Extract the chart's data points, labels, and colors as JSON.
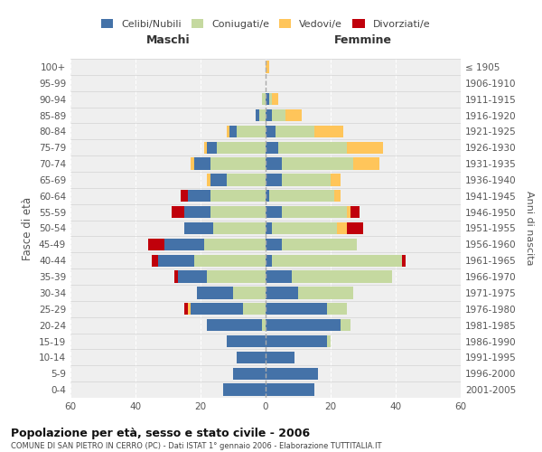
{
  "age_groups": [
    "0-4",
    "5-9",
    "10-14",
    "15-19",
    "20-24",
    "25-29",
    "30-34",
    "35-39",
    "40-44",
    "45-49",
    "50-54",
    "55-59",
    "60-64",
    "65-69",
    "70-74",
    "75-79",
    "80-84",
    "85-89",
    "90-94",
    "95-99",
    "100+"
  ],
  "birth_years": [
    "2001-2005",
    "1996-2000",
    "1991-1995",
    "1986-1990",
    "1981-1985",
    "1976-1980",
    "1971-1975",
    "1966-1970",
    "1961-1965",
    "1956-1960",
    "1951-1955",
    "1946-1950",
    "1941-1945",
    "1936-1940",
    "1931-1935",
    "1926-1930",
    "1921-1925",
    "1916-1920",
    "1911-1915",
    "1906-1910",
    "≤ 1905"
  ],
  "colors": {
    "celibi": "#4472a8",
    "coniugati": "#c5d9a0",
    "vedovi": "#ffc55a",
    "divorziati": "#c0000b"
  },
  "males": {
    "celibi": [
      13,
      10,
      9,
      12,
      17,
      16,
      11,
      9,
      11,
      12,
      9,
      8,
      7,
      5,
      5,
      3,
      2,
      1,
      0,
      0,
      0
    ],
    "coniugati": [
      0,
      0,
      0,
      0,
      1,
      7,
      10,
      18,
      22,
      19,
      16,
      17,
      17,
      12,
      17,
      15,
      9,
      2,
      1,
      0,
      0
    ],
    "vedovi": [
      0,
      0,
      0,
      0,
      0,
      1,
      0,
      0,
      0,
      0,
      0,
      0,
      0,
      1,
      1,
      1,
      1,
      0,
      0,
      0,
      0
    ],
    "divorziati": [
      0,
      0,
      0,
      0,
      0,
      1,
      0,
      1,
      2,
      5,
      0,
      4,
      2,
      0,
      0,
      0,
      0,
      0,
      0,
      0,
      0
    ]
  },
  "females": {
    "celibi": [
      15,
      16,
      9,
      19,
      23,
      19,
      10,
      8,
      2,
      5,
      2,
      5,
      1,
      5,
      5,
      4,
      3,
      2,
      1,
      0,
      0
    ],
    "coniugati": [
      0,
      0,
      0,
      1,
      3,
      6,
      17,
      31,
      40,
      23,
      20,
      20,
      20,
      15,
      22,
      21,
      12,
      4,
      1,
      0,
      0
    ],
    "vedovi": [
      0,
      0,
      0,
      0,
      0,
      0,
      0,
      0,
      0,
      0,
      3,
      1,
      2,
      3,
      8,
      11,
      9,
      5,
      2,
      0,
      1
    ],
    "divorziati": [
      0,
      0,
      0,
      0,
      0,
      0,
      0,
      0,
      1,
      0,
      5,
      3,
      0,
      0,
      0,
      0,
      0,
      0,
      0,
      0,
      0
    ]
  },
  "xlim": 60,
  "title": "Popolazione per età, sesso e stato civile - 2006",
  "subtitle": "COMUNE DI SAN PIETRO IN CERRO (PC) - Dati ISTAT 1° gennaio 2006 - Elaborazione TUTTITALIA.IT",
  "ylabel_left": "Fasce di età",
  "ylabel_right": "Anni di nascita",
  "header_left": "Maschi",
  "header_right": "Femmine",
  "bg_color": "#ffffff",
  "plot_bg": "#efefef",
  "grid_color": "#ffffff"
}
